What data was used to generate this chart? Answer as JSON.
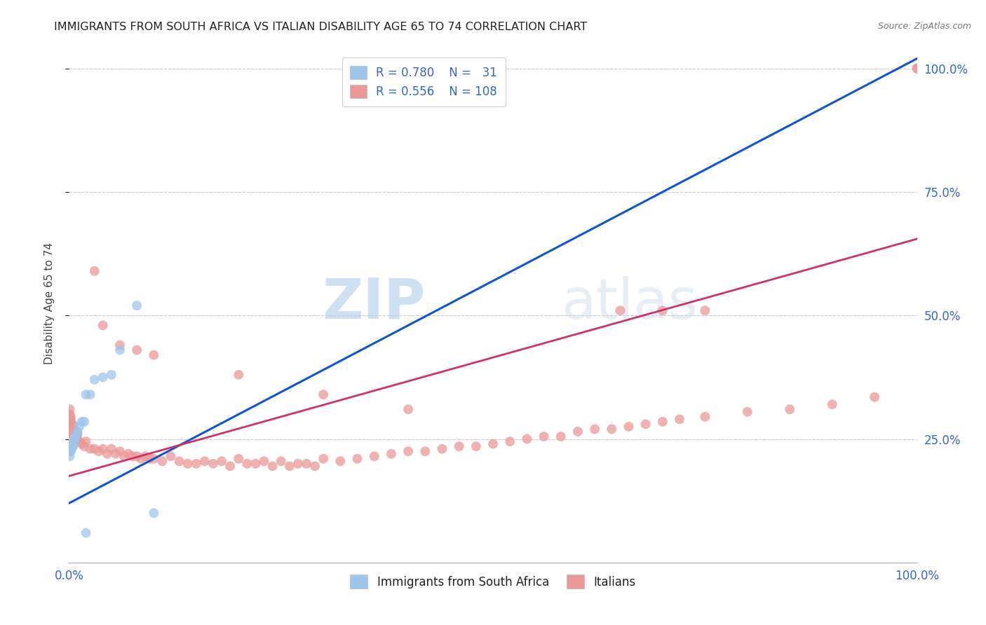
{
  "title": "IMMIGRANTS FROM SOUTH AFRICA VS ITALIAN DISABILITY AGE 65 TO 74 CORRELATION CHART",
  "source": "Source: ZipAtlas.com",
  "ylabel": "Disability Age 65 to 74",
  "legend_blue_r": "R = 0.780",
  "legend_blue_n": "N =   31",
  "legend_pink_r": "R = 0.556",
  "legend_pink_n": "N = 108",
  "legend_label_blue": "Immigrants from South Africa",
  "legend_label_pink": "Italians",
  "blue_color": "#9fc5e8",
  "pink_color": "#ea9999",
  "blue_line_color": "#1155cc",
  "pink_line_color": "#cc3366",
  "watermark_zip": "ZIP",
  "watermark_atlas": "atlas",
  "blue_x": [
    0.001,
    0.001,
    0.001,
    0.001,
    0.002,
    0.002,
    0.002,
    0.003,
    0.003,
    0.004,
    0.004,
    0.005,
    0.005,
    0.006,
    0.006,
    0.007,
    0.008,
    0.009,
    0.01,
    0.012,
    0.015,
    0.018,
    0.02,
    0.025,
    0.03,
    0.04,
    0.05,
    0.06,
    0.08,
    0.1,
    0.02
  ],
  "blue_y": [
    0.235,
    0.225,
    0.215,
    0.23,
    0.23,
    0.225,
    0.24,
    0.23,
    0.235,
    0.24,
    0.235,
    0.245,
    0.235,
    0.245,
    0.25,
    0.25,
    0.255,
    0.26,
    0.265,
    0.275,
    0.285,
    0.285,
    0.34,
    0.34,
    0.37,
    0.375,
    0.38,
    0.43,
    0.52,
    0.1,
    0.06
  ],
  "pink_x": [
    0.001,
    0.001,
    0.001,
    0.001,
    0.001,
    0.002,
    0.002,
    0.002,
    0.002,
    0.002,
    0.003,
    0.003,
    0.003,
    0.004,
    0.004,
    0.004,
    0.005,
    0.005,
    0.005,
    0.006,
    0.006,
    0.007,
    0.007,
    0.008,
    0.008,
    0.009,
    0.009,
    0.01,
    0.01,
    0.012,
    0.015,
    0.018,
    0.02,
    0.025,
    0.03,
    0.035,
    0.04,
    0.045,
    0.05,
    0.055,
    0.06,
    0.065,
    0.07,
    0.075,
    0.08,
    0.085,
    0.09,
    0.095,
    0.1,
    0.11,
    0.12,
    0.13,
    0.14,
    0.15,
    0.16,
    0.17,
    0.18,
    0.19,
    0.2,
    0.21,
    0.22,
    0.23,
    0.24,
    0.25,
    0.26,
    0.27,
    0.28,
    0.29,
    0.3,
    0.32,
    0.34,
    0.36,
    0.38,
    0.4,
    0.42,
    0.44,
    0.46,
    0.48,
    0.5,
    0.52,
    0.54,
    0.56,
    0.58,
    0.6,
    0.62,
    0.64,
    0.66,
    0.68,
    0.7,
    0.72,
    0.75,
    0.8,
    0.85,
    0.9,
    0.95,
    1.0,
    1.0,
    0.65,
    0.7,
    0.75,
    0.03,
    0.04,
    0.06,
    0.08,
    0.1,
    0.2,
    0.3,
    0.4
  ],
  "pink_y": [
    0.29,
    0.27,
    0.3,
    0.28,
    0.31,
    0.27,
    0.29,
    0.28,
    0.295,
    0.285,
    0.27,
    0.28,
    0.265,
    0.275,
    0.26,
    0.28,
    0.265,
    0.275,
    0.255,
    0.265,
    0.27,
    0.255,
    0.265,
    0.26,
    0.25,
    0.255,
    0.26,
    0.25,
    0.26,
    0.245,
    0.24,
    0.235,
    0.245,
    0.23,
    0.23,
    0.225,
    0.23,
    0.22,
    0.23,
    0.22,
    0.225,
    0.215,
    0.22,
    0.215,
    0.215,
    0.21,
    0.215,
    0.21,
    0.21,
    0.205,
    0.215,
    0.205,
    0.2,
    0.2,
    0.205,
    0.2,
    0.205,
    0.195,
    0.21,
    0.2,
    0.2,
    0.205,
    0.195,
    0.205,
    0.195,
    0.2,
    0.2,
    0.195,
    0.21,
    0.205,
    0.21,
    0.215,
    0.22,
    0.225,
    0.225,
    0.23,
    0.235,
    0.235,
    0.24,
    0.245,
    0.25,
    0.255,
    0.255,
    0.265,
    0.27,
    0.27,
    0.275,
    0.28,
    0.285,
    0.29,
    0.295,
    0.305,
    0.31,
    0.32,
    0.335,
    1.0,
    1.0,
    0.51,
    0.51,
    0.51,
    0.59,
    0.48,
    0.44,
    0.43,
    0.42,
    0.38,
    0.34,
    0.31
  ]
}
